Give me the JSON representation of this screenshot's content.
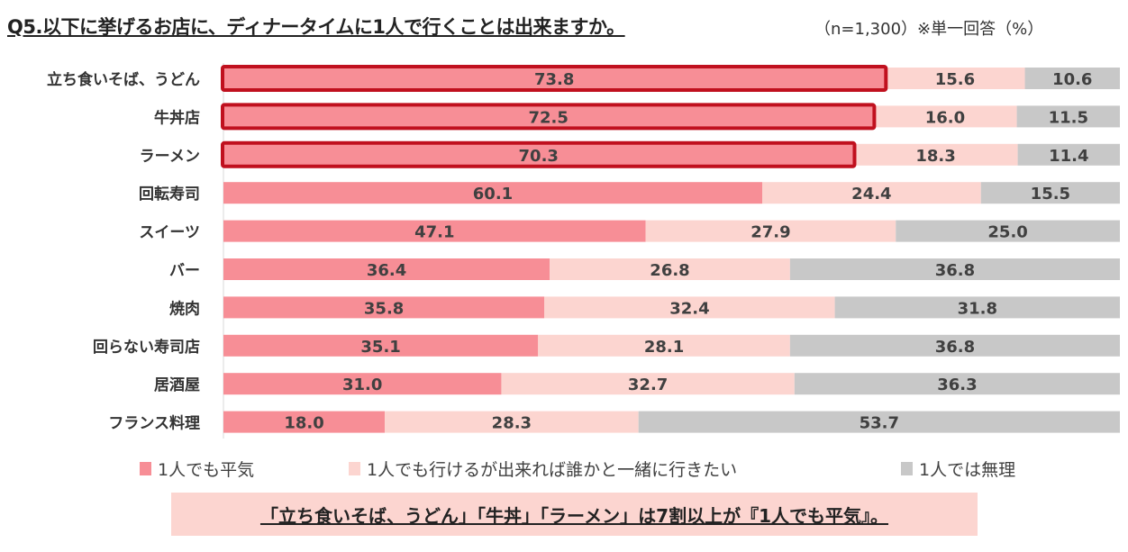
{
  "title": "Q5.以下に挙げるお店に、ディナータイムに1人で行くことは出来ますか。",
  "subtitle": "（n=1,300）※単一回答（%）",
  "note": "「立ち食いそば、うどん」「牛丼」「ラーメン」は7割以上が『1人でも平気』。",
  "chart_data": {
    "type": "bar",
    "orientation": "horizontal",
    "stacked": "100%",
    "categories": [
      "立ち食いそば、うどん",
      "牛丼店",
      "ラーメン",
      "回転寿司",
      "スイーツ",
      "バー",
      "焼肉",
      "回らない寿司店",
      "居酒屋",
      "フランス料理"
    ],
    "series": [
      {
        "name": "1人でも平気",
        "color": "#f78e96",
        "values": [
          73.8,
          72.5,
          70.3,
          60.1,
          47.1,
          36.4,
          35.8,
          35.1,
          31.0,
          18.0
        ]
      },
      {
        "name": "1人でも行けるが出来れば誰かと一緒に行きたい",
        "color": "#fcd5d0",
        "values": [
          15.6,
          16.0,
          18.3,
          24.4,
          27.9,
          26.8,
          32.4,
          28.1,
          32.7,
          28.3
        ]
      },
      {
        "name": "1人では無理",
        "color": "#c8c8c8",
        "values": [
          10.6,
          11.5,
          11.4,
          15.5,
          25.0,
          36.8,
          31.8,
          36.8,
          36.3,
          53.7
        ]
      }
    ],
    "highlighted_categories": [
      "立ち食いそば、うどん",
      "牛丼店",
      "ラーメン"
    ],
    "highlight_color": "#c0101e",
    "xlim": [
      0,
      100
    ],
    "legend_position": "bottom",
    "grid": false
  }
}
